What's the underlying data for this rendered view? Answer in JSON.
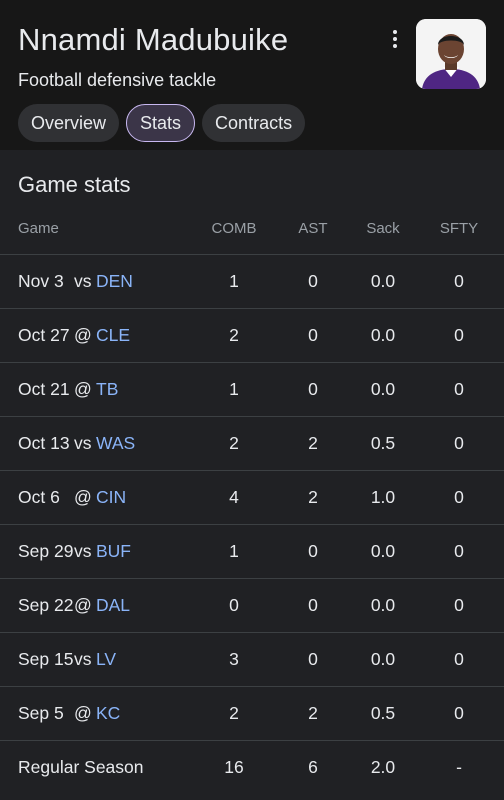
{
  "header": {
    "name": "Nnamdi Madubuike",
    "subtitle": "Football defensive tackle"
  },
  "tabs": [
    {
      "label": "Overview",
      "active": false
    },
    {
      "label": "Stats",
      "active": true
    },
    {
      "label": "Contracts",
      "active": false
    }
  ],
  "section_title": "Game stats",
  "columns": {
    "game": "Game",
    "comb": "COMB",
    "ast": "AST",
    "sack": "Sack",
    "sfty": "SFTY"
  },
  "rows": [
    {
      "date": "Nov 3",
      "ha": "vs",
      "opp": "DEN",
      "comb": "1",
      "ast": "0",
      "sack": "0.0",
      "sfty": "0"
    },
    {
      "date": "Oct 27",
      "ha": "@",
      "opp": "CLE",
      "comb": "2",
      "ast": "0",
      "sack": "0.0",
      "sfty": "0"
    },
    {
      "date": "Oct 21",
      "ha": "@",
      "opp": "TB",
      "comb": "1",
      "ast": "0",
      "sack": "0.0",
      "sfty": "0"
    },
    {
      "date": "Oct 13",
      "ha": "vs",
      "opp": "WAS",
      "comb": "2",
      "ast": "2",
      "sack": "0.5",
      "sfty": "0"
    },
    {
      "date": "Oct 6",
      "ha": "@",
      "opp": "CIN",
      "comb": "4",
      "ast": "2",
      "sack": "1.0",
      "sfty": "0"
    },
    {
      "date": "Sep 29",
      "ha": "vs",
      "opp": "BUF",
      "comb": "1",
      "ast": "0",
      "sack": "0.0",
      "sfty": "0"
    },
    {
      "date": "Sep 22",
      "ha": "@",
      "opp": "DAL",
      "comb": "0",
      "ast": "0",
      "sack": "0.0",
      "sfty": "0"
    },
    {
      "date": "Sep 15",
      "ha": "vs",
      "opp": "LV",
      "comb": "3",
      "ast": "0",
      "sack": "0.0",
      "sfty": "0"
    },
    {
      "date": "Sep 5",
      "ha": "@",
      "opp": "KC",
      "comb": "2",
      "ast": "2",
      "sack": "0.5",
      "sfty": "0"
    }
  ],
  "total": {
    "label": "Regular Season",
    "comb": "16",
    "ast": "6",
    "sack": "2.0",
    "sfty": "-"
  },
  "colors": {
    "link": "#8ab4f8",
    "active_tab_border": "#c8b8f0",
    "background": "#202124"
  }
}
